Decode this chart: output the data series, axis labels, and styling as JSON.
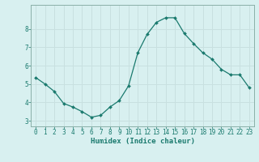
{
  "x": [
    0,
    1,
    2,
    3,
    4,
    5,
    6,
    7,
    8,
    9,
    10,
    11,
    12,
    13,
    14,
    15,
    16,
    17,
    18,
    19,
    20,
    21,
    22,
    23
  ],
  "y": [
    5.35,
    5.0,
    4.6,
    3.95,
    3.75,
    3.5,
    3.2,
    3.3,
    3.75,
    4.1,
    4.9,
    6.7,
    7.7,
    8.35,
    8.6,
    8.6,
    7.75,
    7.2,
    6.7,
    6.35,
    5.8,
    5.5,
    5.5,
    4.8
  ],
  "line_color": "#1a7a6e",
  "marker": "D",
  "marker_size": 2.0,
  "bg_color": "#d8f0f0",
  "grid_color": "#c8e0e0",
  "xlabel": "Humidex (Indice chaleur)",
  "xlim": [
    -0.5,
    23.5
  ],
  "ylim": [
    2.7,
    9.3
  ],
  "yticks": [
    3,
    4,
    5,
    6,
    7,
    8
  ],
  "xticks": [
    0,
    1,
    2,
    3,
    4,
    5,
    6,
    7,
    8,
    9,
    10,
    11,
    12,
    13,
    14,
    15,
    16,
    17,
    18,
    19,
    20,
    21,
    22,
    23
  ],
  "tick_color": "#1a7a6e",
  "label_color": "#1a7a6e",
  "axis_color": "#8ab0a8",
  "tick_fontsize": 5.5,
  "xlabel_fontsize": 6.5
}
